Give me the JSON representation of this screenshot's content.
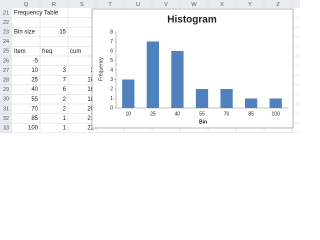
{
  "spreadsheet": {
    "columns": [
      "Q",
      "R",
      "S",
      "T",
      "U",
      "V",
      "W",
      "X",
      "Y",
      "Z"
    ],
    "rows": [
      {
        "row": 21,
        "cells": {
          "Q": "Frequency Table"
        }
      },
      {
        "row": 22,
        "cells": {}
      },
      {
        "row": 23,
        "cells": {
          "Q": "Bin size",
          "R": 15
        }
      },
      {
        "row": 24,
        "cells": {}
      },
      {
        "row": 25,
        "cells": {
          "Q": "Item",
          "R": "freq",
          "S": "cum"
        }
      },
      {
        "row": 26,
        "cells": {
          "Q": -5
        }
      },
      {
        "row": 27,
        "cells": {
          "Q": 10,
          "R": 3,
          "S": 3
        }
      },
      {
        "row": 28,
        "cells": {
          "Q": 25,
          "R": 7,
          "S": 10
        }
      },
      {
        "row": 29,
        "cells": {
          "Q": 40,
          "R": 6,
          "S": 16
        }
      },
      {
        "row": 30,
        "cells": {
          "Q": 55,
          "R": 2,
          "S": 18
        }
      },
      {
        "row": 31,
        "cells": {
          "Q": 70,
          "R": 2,
          "S": 20
        }
      },
      {
        "row": 32,
        "cells": {
          "Q": 85,
          "R": 1,
          "S": 21
        }
      },
      {
        "row": 33,
        "cells": {
          "Q": 100,
          "R": 1,
          "S": 22
        }
      }
    ]
  },
  "chart_data": {
    "type": "bar",
    "title": "Histogram",
    "x_label": "Bin",
    "y_label": "Frequency",
    "categories": [
      "10",
      "25",
      "40",
      "55",
      "70",
      "85",
      "100"
    ],
    "values": [
      3,
      7,
      6,
      2,
      2,
      1,
      1
    ],
    "color": "#4f81bd",
    "ylim": [
      0,
      8
    ],
    "yticks": [
      0,
      1,
      2,
      3,
      4,
      5,
      6,
      7,
      8
    ]
  }
}
